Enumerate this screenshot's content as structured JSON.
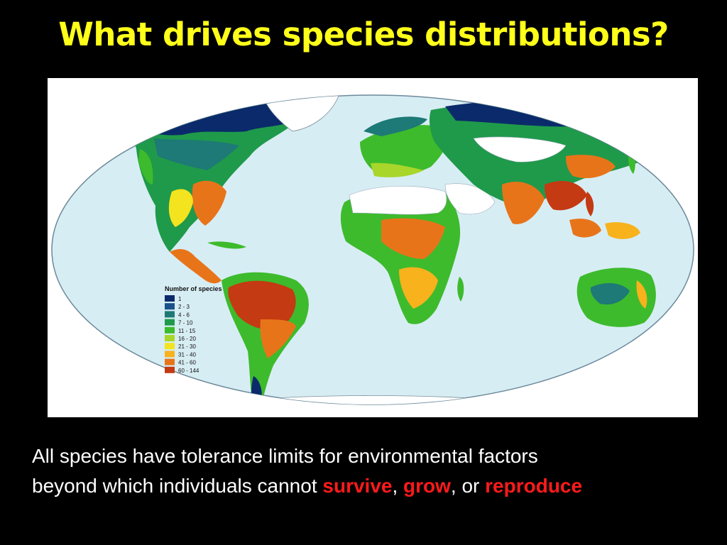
{
  "slide": {
    "title": "What drives species distributions?",
    "caption": {
      "line1": "All species have tolerance limits for environmental factors",
      "line2_prefix": "beyond which individuals cannot ",
      "survive": "survive",
      "sep1": ", ",
      "grow": "grow",
      "sep2": ", or ",
      "reproduce": "reproduce"
    },
    "highlight_color": "#ff1a1a",
    "title_color": "#ffff1a"
  },
  "map": {
    "legend": {
      "title": "Number of species",
      "items": [
        {
          "label": "1",
          "color": "#0b2a6b"
        },
        {
          "label": "2 - 3",
          "color": "#1a4f8a"
        },
        {
          "label": "4 - 6",
          "color": "#1d7a76"
        },
        {
          "label": "7 - 10",
          "color": "#1f9a4a"
        },
        {
          "label": "11 - 15",
          "color": "#3dbb2c"
        },
        {
          "label": "16 - 20",
          "color": "#a8d62a"
        },
        {
          "label": "21 - 30",
          "color": "#f4e31f"
        },
        {
          "label": "31 - 40",
          "color": "#f7b21c"
        },
        {
          "label": "41 - 60",
          "color": "#e8741a"
        },
        {
          "label": "60 - 144",
          "color": "#c43a12"
        }
      ]
    },
    "ocean_color": "#d7edf4"
  }
}
